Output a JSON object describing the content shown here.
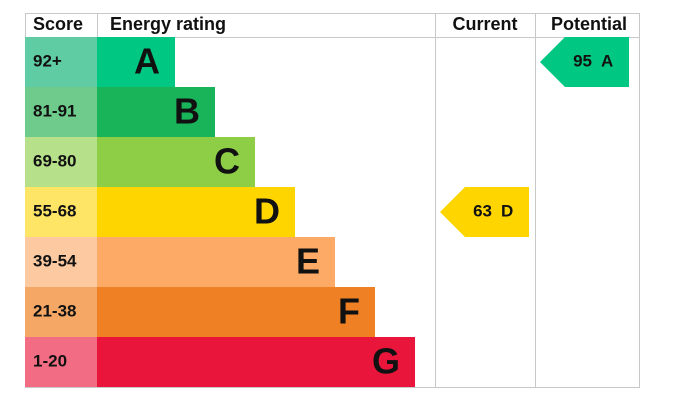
{
  "header": {
    "score": "Score",
    "rating": "Energy rating",
    "current": "Current",
    "potential": "Potential"
  },
  "bands": [
    {
      "score": "92+",
      "letter": "A",
      "color": "#00c781",
      "score_color": "#5fcca3"
    },
    {
      "score": "81-91",
      "letter": "B",
      "color": "#19b459",
      "score_color": "#6ecb8c"
    },
    {
      "score": "69-80",
      "letter": "C",
      "color": "#8dce46",
      "score_color": "#b6e08a"
    },
    {
      "score": "55-68",
      "letter": "D",
      "color": "#ffd500",
      "score_color": "#ffe566"
    },
    {
      "score": "39-54",
      "letter": "E",
      "color": "#fcaa65",
      "score_color": "#fdc9a0"
    },
    {
      "score": "21-38",
      "letter": "F",
      "color": "#ef8023",
      "score_color": "#f5a866"
    },
    {
      "score": "1-20",
      "letter": "G",
      "color": "#e9153b",
      "score_color": "#f26d83"
    }
  ],
  "current": {
    "value": 63,
    "letter": "D"
  },
  "potential": {
    "value": 95,
    "letter": "A"
  }
}
